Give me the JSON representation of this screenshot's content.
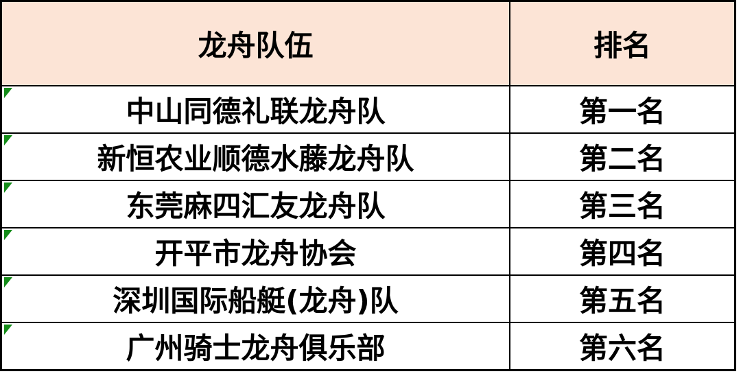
{
  "chart_data": {
    "type": "table",
    "columns": [
      "龙舟队伍",
      "排名"
    ],
    "rows": [
      [
        "中山同德礼联龙舟队",
        "第一名"
      ],
      [
        "新恒农业顺德水藤龙舟队",
        "第二名"
      ],
      [
        "东莞麻四汇友龙舟队",
        "第三名"
      ],
      [
        "开平市龙舟协会",
        "第四名"
      ],
      [
        "深圳国际船艇(龙舟)队",
        "第五名"
      ],
      [
        "广州骑士龙舟俱乐部",
        "第六名"
      ]
    ],
    "layout_hints": {
      "header_row": true,
      "grid": true,
      "text_align": "center"
    }
  },
  "colors": {
    "header_bg": "#FCE4D6",
    "cell_bg": "#FFFFFF",
    "border": "#000000",
    "text": "#000000",
    "error_indicator_green": "#148C19"
  }
}
